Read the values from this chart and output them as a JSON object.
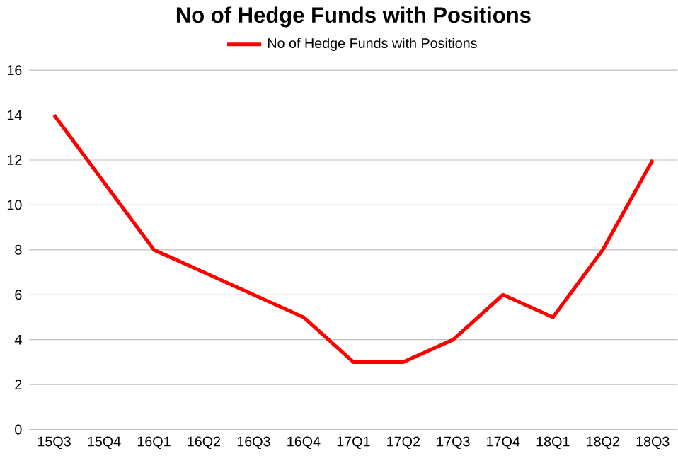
{
  "chart_data": {
    "type": "line",
    "title": "No of Hedge Funds with Positions",
    "categories": [
      "15Q3",
      "15Q4",
      "16Q1",
      "16Q2",
      "16Q3",
      "16Q4",
      "17Q1",
      "17Q2",
      "17Q3",
      "17Q4",
      "18Q1",
      "18Q2",
      "18Q3"
    ],
    "series": [
      {
        "name": "No of Hedge Funds with Positions",
        "color": "#ff0000",
        "values": [
          14,
          11,
          8,
          7,
          6,
          5,
          3,
          3,
          4,
          6,
          5,
          8,
          12
        ]
      }
    ],
    "ylim": [
      0,
      16
    ],
    "yticks": [
      0,
      2,
      4,
      6,
      8,
      10,
      12,
      14,
      16
    ],
    "grid": "y",
    "legend": "top",
    "marker": "none",
    "line_style": "solid"
  }
}
